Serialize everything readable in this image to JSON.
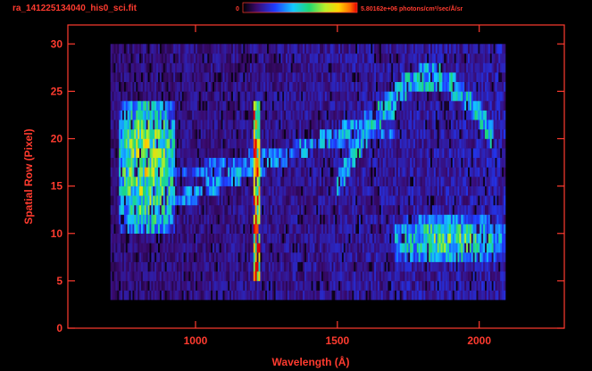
{
  "chart_data": {
    "type": "heatmap",
    "title": "ra_141225134040_his0_sci.fit",
    "colorbar": {
      "min_label": "0",
      "max_label": "5.80162e+06 photons/cm²/sec/Å/sr",
      "min": 0,
      "max": 5801620,
      "colormap": "rainbow"
    },
    "xlabel": "Wavelength (Å)",
    "ylabel": "Spatial Row (Pixel)",
    "xlim": [
      550,
      2300
    ],
    "ylim": [
      0,
      32
    ],
    "xticks": [
      1000,
      1500,
      2000
    ],
    "yticks": [
      0,
      5,
      10,
      15,
      20,
      25,
      30
    ],
    "data_extent": {
      "x": [
        700,
        2090
      ],
      "y": [
        3,
        30
      ]
    },
    "features": [
      {
        "kind": "vertical line",
        "x": 1216,
        "y": [
          5,
          24
        ],
        "intensity": 0.85
      },
      {
        "kind": "band",
        "x": [
          730,
          930
        ],
        "y": [
          10.5,
          24
        ],
        "intensity": 0.7
      },
      {
        "kind": "band",
        "x": [
          1700,
          2090
        ],
        "y": [
          7,
          11.5
        ],
        "intensity": 0.6
      },
      {
        "kind": "arc",
        "x": [
          1500,
          2050
        ],
        "y": [
          15,
          26.5
        ],
        "intensity": 0.45
      }
    ],
    "colors": {
      "frame": "#ff3b2f",
      "background": "#000000"
    }
  }
}
